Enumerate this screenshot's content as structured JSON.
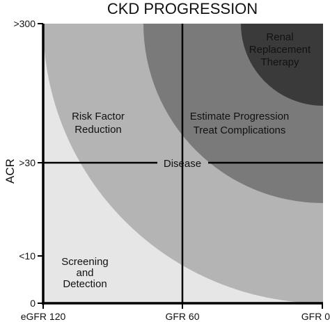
{
  "title": "CKD PROGRESSION",
  "y_axis": {
    "title": "ACR",
    "ticks": [
      ">300",
      ">30",
      "<10",
      "0"
    ]
  },
  "x_axis": {
    "ticks": [
      "eGFR 120",
      "GFR 60",
      "GFR 0"
    ]
  },
  "regions": {
    "screening": [
      "Screening",
      "and",
      "Detection"
    ],
    "risk_factor": [
      "Risk Factor",
      "Reduction"
    ],
    "disease": "Disease",
    "estimate": [
      "Estimate Progression",
      "Treat Complications"
    ],
    "renal": [
      "Renal",
      "Replacement",
      "Therapy"
    ]
  },
  "colors": {
    "background": "#e6e6e6",
    "screening_zone": "#e6e6e6",
    "risk_zone": "#b4b4b4",
    "estimate_zone": "#7a7a7a",
    "renal_zone": "#3a3a3a"
  }
}
